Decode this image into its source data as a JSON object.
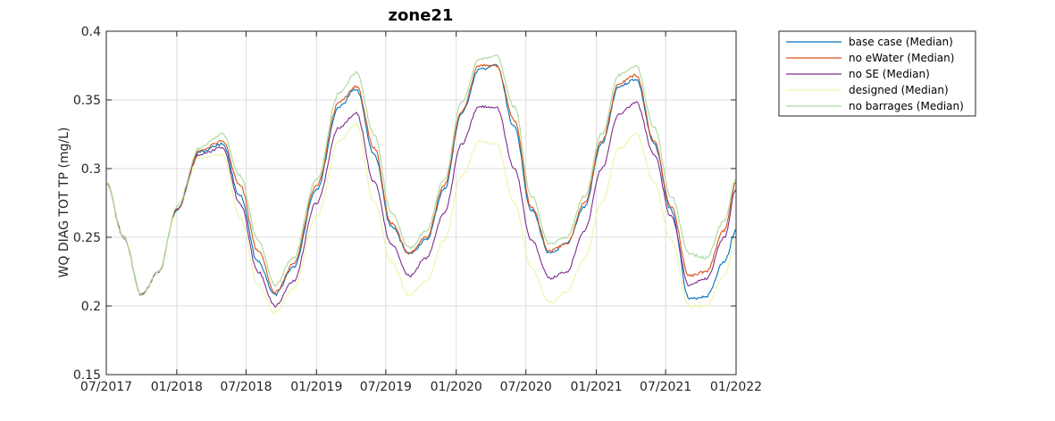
{
  "chart_data": {
    "type": "line",
    "title": "zone21",
    "xlabel": "",
    "ylabel": "WQ DIAG TOT TP (mg/L)",
    "ylim": [
      0.15,
      0.4
    ],
    "yticks": [
      "0.15",
      "0.2",
      "0.25",
      "0.3",
      "0.35",
      "0.4"
    ],
    "xlim": [
      "2017-07-01",
      "2022-01-01"
    ],
    "xticks": [
      "07/2017",
      "01/2018",
      "07/2018",
      "01/2019",
      "07/2019",
      "01/2020",
      "07/2020",
      "01/2021",
      "07/2021",
      "01/2022"
    ],
    "grid": true,
    "legend_position": "outside-top-right",
    "x": [
      "2017-07-01",
      "2017-08-15",
      "2017-10-01",
      "2017-11-15",
      "2018-01-01",
      "2018-03-01",
      "2018-05-01",
      "2018-06-15",
      "2018-08-01",
      "2018-09-15",
      "2018-11-01",
      "2019-01-01",
      "2019-03-01",
      "2019-04-15",
      "2019-06-01",
      "2019-07-15",
      "2019-09-01",
      "2019-10-15",
      "2019-12-01",
      "2020-01-15",
      "2020-03-01",
      "2020-04-15",
      "2020-06-01",
      "2020-07-15",
      "2020-09-01",
      "2020-10-15",
      "2020-12-01",
      "2021-01-15",
      "2021-03-01",
      "2021-04-15",
      "2021-06-01",
      "2021-07-15",
      "2021-09-01",
      "2021-10-15",
      "2021-12-01",
      "2022-01-01"
    ],
    "series": [
      {
        "name": "base case (Median)",
        "color": "#0072BD",
        "values": [
          0.29,
          0.25,
          0.208,
          0.225,
          0.27,
          0.312,
          0.318,
          0.28,
          0.232,
          0.208,
          0.228,
          0.285,
          0.345,
          0.358,
          0.31,
          0.258,
          0.238,
          0.248,
          0.285,
          0.34,
          0.372,
          0.375,
          0.33,
          0.27,
          0.238,
          0.245,
          0.272,
          0.318,
          0.36,
          0.365,
          0.318,
          0.27,
          0.205,
          0.207,
          0.232,
          0.255
        ]
      },
      {
        "name": "no eWater (Median)",
        "color": "#D95319",
        "values": [
          0.29,
          0.25,
          0.208,
          0.225,
          0.27,
          0.313,
          0.32,
          0.288,
          0.24,
          0.21,
          0.23,
          0.288,
          0.348,
          0.36,
          0.315,
          0.26,
          0.238,
          0.25,
          0.288,
          0.342,
          0.375,
          0.375,
          0.335,
          0.272,
          0.24,
          0.245,
          0.275,
          0.32,
          0.362,
          0.368,
          0.32,
          0.272,
          0.222,
          0.225,
          0.255,
          0.29
        ]
      },
      {
        "name": "no SE (Median)",
        "color": "#7E2F8E",
        "values": [
          0.29,
          0.25,
          0.208,
          0.225,
          0.27,
          0.31,
          0.315,
          0.275,
          0.225,
          0.2,
          0.218,
          0.275,
          0.33,
          0.34,
          0.29,
          0.245,
          0.222,
          0.235,
          0.268,
          0.318,
          0.345,
          0.345,
          0.3,
          0.248,
          0.22,
          0.225,
          0.255,
          0.3,
          0.34,
          0.348,
          0.31,
          0.265,
          0.215,
          0.22,
          0.25,
          0.285
        ]
      },
      {
        "name": "designed (Median)",
        "color": "#EDF5A6",
        "values": [
          0.29,
          0.25,
          0.208,
          0.225,
          0.268,
          0.308,
          0.31,
          0.265,
          0.215,
          0.195,
          0.212,
          0.265,
          0.32,
          0.332,
          0.275,
          0.232,
          0.208,
          0.218,
          0.248,
          0.295,
          0.32,
          0.318,
          0.275,
          0.228,
          0.202,
          0.21,
          0.235,
          0.275,
          0.315,
          0.325,
          0.29,
          0.248,
          0.2,
          0.2,
          0.222,
          0.248
        ]
      },
      {
        "name": "no barrages (Median)",
        "color": "#A8D99A",
        "values": [
          0.29,
          0.25,
          0.208,
          0.225,
          0.272,
          0.315,
          0.325,
          0.295,
          0.248,
          0.215,
          0.235,
          0.292,
          0.355,
          0.37,
          0.325,
          0.268,
          0.242,
          0.255,
          0.292,
          0.348,
          0.38,
          0.382,
          0.345,
          0.28,
          0.245,
          0.25,
          0.28,
          0.325,
          0.368,
          0.375,
          0.33,
          0.28,
          0.238,
          0.235,
          0.262,
          0.292
        ]
      }
    ]
  }
}
